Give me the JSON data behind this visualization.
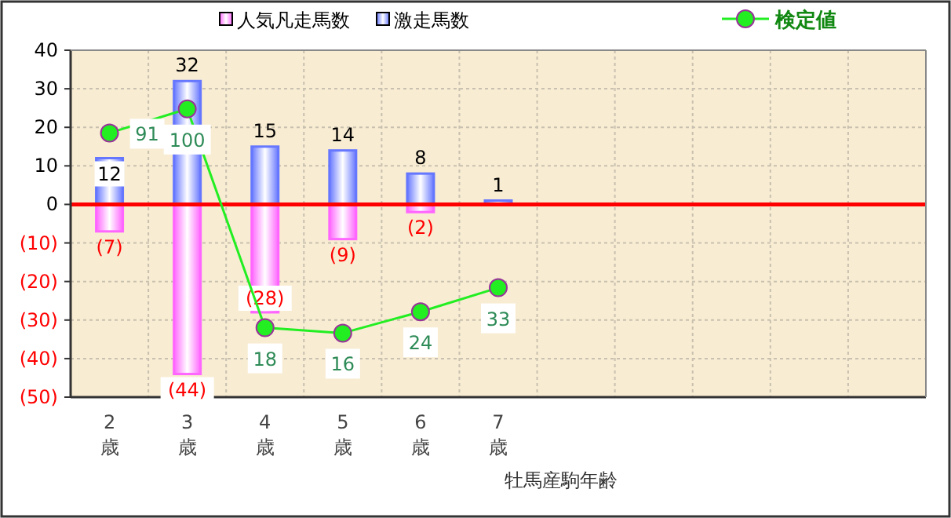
{
  "chart_data": {
    "type": "bar",
    "stacked": true,
    "xlabel": "牡馬産駒年齢",
    "categories": [
      "2歳",
      "3歳",
      "4歳",
      "5歳",
      "6歳",
      "7歳",
      null,
      null,
      null,
      null,
      null
    ],
    "series": [
      {
        "name": "人気凡走馬数",
        "color": "#ff66ff",
        "values": [
          -7,
          -44,
          -28,
          -9,
          -2,
          null,
          null,
          null,
          null,
          null,
          null
        ],
        "value_labels": [
          "(7)",
          "(44)",
          "(28)",
          "(9)",
          "(2)",
          null,
          null,
          null,
          null,
          null,
          null
        ]
      },
      {
        "name": "激走馬数",
        "color": "#6677ff",
        "values": [
          12,
          32,
          15,
          14,
          8,
          1,
          null,
          null,
          null,
          null,
          null
        ],
        "value_labels": [
          "12",
          "32",
          "15",
          "14",
          "8",
          "1",
          null,
          null,
          null,
          null,
          null
        ]
      },
      {
        "name": "検定値",
        "type": "line",
        "axis": "y2",
        "color": "#22ee22",
        "marker": "circle",
        "values": [
          91,
          100,
          18,
          16,
          24,
          33,
          null,
          null,
          null,
          null,
          null
        ],
        "value_labels": [
          "91",
          "100",
          "18",
          "16",
          "24",
          "33",
          null,
          null,
          null,
          null,
          null
        ]
      }
    ],
    "ylim": [
      -50,
      40
    ],
    "yticks": [
      {
        "value": -50,
        "label": "(50)"
      },
      {
        "value": -40,
        "label": "(40)"
      },
      {
        "value": -30,
        "label": "(30)"
      },
      {
        "value": -20,
        "label": "(20)"
      },
      {
        "value": -10,
        "label": "(10)"
      },
      0,
      10,
      20,
      30,
      40
    ],
    "y2lim": [
      -8,
      122
    ],
    "ref_lines": [
      {
        "axis": "y",
        "value": 0,
        "color": "#ff0000"
      }
    ],
    "grid": true,
    "legend": "top"
  }
}
